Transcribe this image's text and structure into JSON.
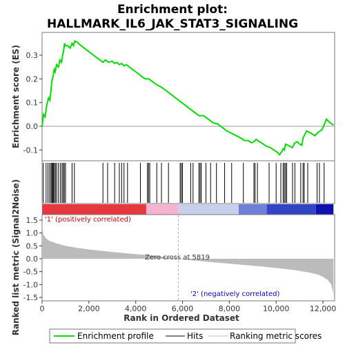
{
  "chart_data": {
    "type": "line",
    "title_line1": "Enrichment plot:",
    "title_line2": "HALLMARK_IL6_JAK_STAT3_SIGNALING",
    "top_panel": {
      "ylabel": "Enrichment score (ES)",
      "ylim": [
        -0.15,
        0.4
      ],
      "yticks": [
        -0.1,
        0.0,
        0.1,
        0.2,
        0.3
      ],
      "ytick_labels": [
        "-0.1",
        "0.0",
        "0.1",
        "0.2",
        "0.3"
      ],
      "series": [
        {
          "name": "Enrichment profile",
          "color": "#00dd00",
          "x": [
            0,
            60,
            130,
            200,
            280,
            330,
            380,
            420,
            470,
            520,
            560,
            620,
            700,
            760,
            830,
            880,
            920,
            960,
            1000,
            1100,
            1200,
            1280,
            1340,
            1400,
            1500,
            1600,
            1800,
            2000,
            2200,
            2400,
            2600,
            2700,
            2780,
            2850,
            3000,
            3100,
            3200,
            3300,
            3400,
            3500,
            3600,
            3800,
            4000,
            4200,
            4400,
            4550,
            4700,
            4900,
            5100,
            5300,
            5500,
            5700,
            5900,
            6100,
            6300,
            6500,
            6700,
            6900,
            7100,
            7300,
            7500,
            7700,
            7900,
            8100,
            8300,
            8500,
            8650,
            8800,
            8950,
            9050,
            9150,
            9200,
            9300,
            9450,
            9600,
            9750,
            9900,
            10050,
            10150,
            10250,
            10300,
            10350,
            10400,
            10500,
            10600,
            10700,
            10800,
            10900,
            11000,
            11100,
            11150,
            11200,
            11300,
            11500,
            11650,
            11800,
            11950,
            12050,
            12150,
            12300,
            12450
          ],
          "y": [
            0.0,
            0.05,
            0.04,
            0.09,
            0.12,
            0.11,
            0.15,
            0.19,
            0.21,
            0.24,
            0.23,
            0.26,
            0.25,
            0.28,
            0.27,
            0.3,
            0.32,
            0.35,
            0.34,
            0.34,
            0.33,
            0.35,
            0.34,
            0.36,
            0.355,
            0.345,
            0.33,
            0.315,
            0.3,
            0.285,
            0.27,
            0.28,
            0.275,
            0.27,
            0.275,
            0.265,
            0.27,
            0.26,
            0.265,
            0.255,
            0.26,
            0.245,
            0.23,
            0.215,
            0.2,
            0.2,
            0.19,
            0.175,
            0.165,
            0.15,
            0.135,
            0.12,
            0.105,
            0.09,
            0.075,
            0.06,
            0.045,
            0.045,
            0.03,
            0.015,
            0.01,
            -0.005,
            -0.02,
            -0.03,
            -0.04,
            -0.05,
            -0.06,
            -0.06,
            -0.07,
            -0.065,
            -0.055,
            -0.06,
            -0.065,
            -0.075,
            -0.085,
            -0.09,
            -0.1,
            -0.11,
            -0.12,
            -0.105,
            -0.095,
            -0.1,
            -0.075,
            -0.08,
            -0.085,
            -0.09,
            -0.07,
            -0.065,
            -0.075,
            -0.08,
            -0.05,
            -0.04,
            -0.02,
            -0.03,
            -0.04,
            -0.025,
            -0.015,
            0.005,
            0.03,
            0.015,
            0.005
          ]
        }
      ]
    },
    "hits_panel": {
      "hit_positions": [
        50,
        170,
        250,
        320,
        380,
        420,
        450,
        480,
        520,
        570,
        620,
        700,
        780,
        850,
        900,
        950,
        1000,
        1280,
        1380,
        2600,
        2800,
        3100,
        3300,
        3400,
        3500,
        3650,
        4200,
        4500,
        4550,
        4600,
        4900,
        5100,
        5400,
        5900,
        5950,
        6000,
        6350,
        6450,
        6700,
        6750,
        6800,
        7000,
        7200,
        7450,
        7800,
        8100,
        8600,
        9050,
        9100,
        9200,
        9700,
        10000,
        10200,
        10300,
        10350,
        10400,
        10450,
        10700,
        10800,
        11050,
        11150,
        11200,
        11350,
        11750,
        11850,
        12050
      ]
    },
    "bottom_panel": {
      "ylabel": "Ranked list metric (Signal2Noise)",
      "xlabel": "Rank in Ordered Dataset",
      "xlim": [
        0,
        12500
      ],
      "ylim": [
        -1.55,
        1.55
      ],
      "xticks": [
        0,
        2000,
        4000,
        6000,
        8000,
        10000,
        12000
      ],
      "xtick_labels": [
        "0",
        "2,000",
        "4,000",
        "6,000",
        "8,000",
        "10,000",
        "12,000"
      ],
      "yticks": [
        -1.5,
        -1.0,
        -0.5,
        0.0,
        0.5,
        1.0,
        1.5
      ],
      "ytick_labels": [
        "-1.5",
        "-1.0",
        "-0.5",
        "0.0",
        "0.5",
        "1.0",
        "1.5"
      ],
      "metric_x": [
        0,
        50,
        150,
        300,
        600,
        1000,
        1500,
        2000,
        2500,
        3000,
        3500,
        4000,
        4500,
        5000,
        5500,
        5819,
        6000,
        6500,
        7000,
        7500,
        8000,
        8500,
        9000,
        9500,
        10000,
        10500,
        11000,
        11500,
        11800,
        12000,
        12200,
        12350,
        12420,
        12450
      ],
      "metric_y": [
        1.4,
        0.95,
        0.8,
        0.7,
        0.6,
        0.5,
        0.42,
        0.36,
        0.31,
        0.26,
        0.22,
        0.18,
        0.14,
        0.1,
        0.04,
        0.0,
        -0.03,
        -0.07,
        -0.11,
        -0.15,
        -0.19,
        -0.23,
        -0.27,
        -0.31,
        -0.36,
        -0.41,
        -0.47,
        -0.55,
        -0.62,
        -0.7,
        -0.82,
        -1.0,
        -1.25,
        -1.45
      ],
      "zero_cross_label": "Zero cross at 5819",
      "zero_cross": 5819,
      "pos_label": "'1' (positively correlated)",
      "neg_label": "'2' (negatively correlated)",
      "pos_color": "#cc0000",
      "neg_color": "#0000cc"
    },
    "legend": {
      "entries": [
        {
          "label": "Enrichment profile",
          "color": "#00dd00"
        },
        {
          "label": "Hits",
          "color": "#000000"
        },
        {
          "label": "Ranking metric scores",
          "color": "#bbbbbb"
        }
      ]
    }
  }
}
